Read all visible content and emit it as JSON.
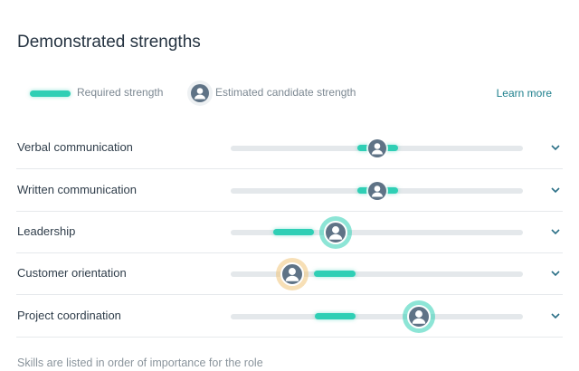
{
  "header": {
    "title": "Demonstrated strengths"
  },
  "legend": {
    "required": "Required strength",
    "estimated": "Estimated candidate strength",
    "link": "Learn more"
  },
  "rows": [
    {
      "label": "Verbal communication"
    },
    {
      "label": "Written communication"
    },
    {
      "label": "Leadership"
    },
    {
      "label": "Customer orientation"
    },
    {
      "label": "Project coordination"
    }
  ],
  "footer": "Skills are listed in order of importance for the role"
}
